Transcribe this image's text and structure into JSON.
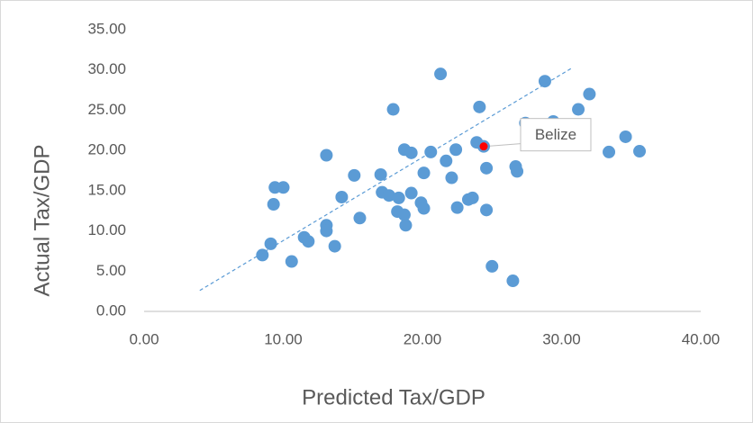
{
  "chart_data": {
    "type": "scatter",
    "x_label": "Predicted Tax/GDP",
    "y_label": "Actual Tax/GDP",
    "xlim": [
      0,
      40
    ],
    "ylim": [
      0,
      35
    ],
    "xticks": [
      {
        "value": 0,
        "label": "0.00"
      },
      {
        "value": 10,
        "label": "10.00"
      },
      {
        "value": 20,
        "label": "20.00"
      },
      {
        "value": 30,
        "label": "30.00"
      },
      {
        "value": 40,
        "label": "40.00"
      }
    ],
    "yticks": [
      {
        "value": 0,
        "label": "0.00"
      },
      {
        "value": 5,
        "label": "5.00"
      },
      {
        "value": 10,
        "label": "10.00"
      },
      {
        "value": 15,
        "label": "15.00"
      },
      {
        "value": 20,
        "label": "20.00"
      },
      {
        "value": 25,
        "label": "25.00"
      },
      {
        "value": 30,
        "label": "30.00"
      },
      {
        "value": 35,
        "label": "35.00"
      }
    ],
    "grid": false,
    "series": [
      {
        "color": "#5b9bd5",
        "x": [
          21.3,
          28.8,
          32.0,
          24.1,
          17.9,
          31.2,
          27.4,
          29.4,
          23.9,
          34.6,
          18.7,
          19.2,
          20.6,
          22.4,
          13.1,
          33.4,
          35.6,
          21.7,
          26.7,
          24.6,
          26.8,
          20.1,
          15.1,
          17.0,
          22.1,
          9.4,
          10.0,
          17.1,
          17.6,
          19.2,
          18.3,
          14.2,
          19.9,
          23.6,
          23.3,
          9.3,
          20.1,
          22.5,
          24.6,
          18.2,
          18.7,
          15.5,
          13.1,
          18.8,
          13.1,
          11.5,
          11.8,
          9.1,
          13.7,
          8.5,
          10.6,
          25.0,
          26.5
        ],
        "values": [
          29.5,
          28.6,
          27.0,
          25.4,
          25.1,
          25.1,
          23.4,
          23.6,
          21.0,
          21.7,
          20.1,
          19.7,
          19.8,
          20.1,
          19.4,
          19.8,
          19.9,
          18.7,
          18.0,
          17.8,
          17.4,
          17.2,
          16.9,
          17.0,
          16.6,
          15.4,
          15.4,
          14.8,
          14.4,
          14.7,
          14.1,
          14.2,
          13.5,
          14.1,
          13.9,
          13.3,
          12.8,
          12.9,
          12.6,
          12.4,
          12.0,
          11.6,
          10.7,
          10.7,
          10.0,
          9.2,
          8.7,
          8.4,
          8.1,
          7.0,
          6.2,
          5.6,
          3.8
        ]
      }
    ],
    "trendline": {
      "color": "#5b9bd5",
      "x": [
        4.0,
        30.8
      ],
      "values": [
        2.6,
        30.3
      ]
    },
    "annotations": [
      {
        "text": "Belize",
        "x": 24.4,
        "y": 20.5,
        "color": "#ff0000"
      }
    ]
  }
}
